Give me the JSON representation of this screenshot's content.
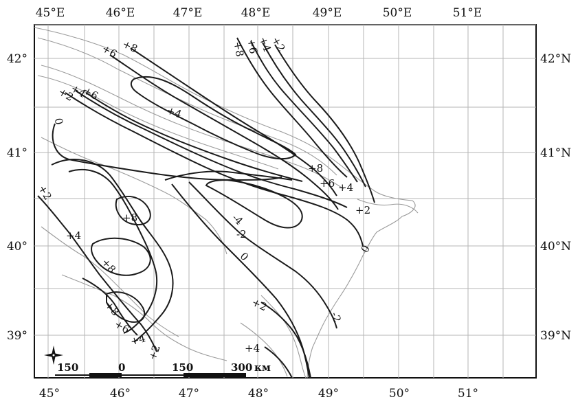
{
  "map": {
    "top_longitudes": [
      "45°E",
      "46°E",
      "47°E",
      "48°E",
      "49°E",
      "50°E",
      "51°E"
    ],
    "bottom_longitudes": [
      "45°",
      "46°",
      "47°",
      "48°",
      "49°",
      "50°",
      "51°"
    ],
    "left_latitudes": [
      "42°",
      "41°",
      "40°",
      "39°"
    ],
    "right_latitudes": [
      "42°N",
      "41°N",
      "40°N",
      "39°N"
    ],
    "contour_labels": [
      "+6",
      "+8",
      "+8",
      "+6",
      "+4",
      "+2",
      "+2",
      "+4",
      "+6",
      "0",
      "+4",
      "+8",
      "+6",
      "+4",
      "+2",
      "+2",
      "+8",
      "+4",
      "+8",
      "+8",
      "+6",
      "+4",
      "+2",
      "-4",
      "-2",
      "0",
      "0",
      "+2",
      "-2",
      "+4"
    ],
    "scale_bar": {
      "ticks": [
        "150",
        "0",
        "150",
        "300"
      ],
      "unit": "км"
    },
    "icons": {
      "compass": "compass-rose-icon"
    },
    "colors": {
      "contour_line": "#1a1a1a",
      "coastline": "#9a9a9a",
      "grid": "#b5b5b5",
      "frame": "#111111"
    }
  }
}
